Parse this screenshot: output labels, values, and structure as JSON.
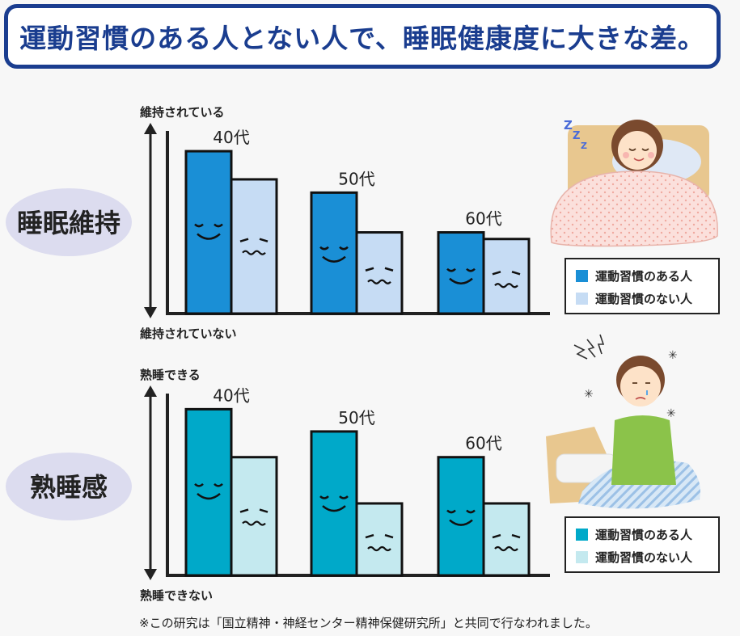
{
  "title": "運動習慣のある人とない人で、睡眠健康度に大きな差。",
  "footnote": "※この研究は「国立精神・神経センター精神保健研究所」と共同で行なわれました。",
  "chart_data": [
    {
      "type": "bar",
      "title": "睡眠維持",
      "ylabel_top": "維持されている",
      "ylabel_bottom": "維持されていない",
      "categories": [
        "40代",
        "50代",
        "60代"
      ],
      "series": [
        {
          "name": "運動習慣のある人",
          "values": [
            0.98,
            0.73,
            0.49
          ],
          "color": "#1a8fd6"
        },
        {
          "name": "運動習慣のない人",
          "values": [
            0.81,
            0.49,
            0.45
          ],
          "color": "#c6dcf4"
        }
      ],
      "ylim": [
        0,
        1
      ]
    },
    {
      "type": "bar",
      "title": "熟睡感",
      "ylabel_top": "熟睡できる",
      "ylabel_bottom": "熟睡できない",
      "categories": [
        "40代",
        "50代",
        "60代"
      ],
      "series": [
        {
          "name": "運動習慣のある人",
          "values": [
            0.97,
            0.84,
            0.69
          ],
          "color": "#00a9c9"
        },
        {
          "name": "運動習慣のない人",
          "values": [
            0.69,
            0.42,
            0.42
          ],
          "color": "#c4e9ef"
        }
      ],
      "ylim": [
        0,
        1
      ]
    }
  ],
  "icons": [
    "sleeping-woman-illustration",
    "tired-man-illustration",
    "smiling-face-icon",
    "frowning-face-icon"
  ]
}
